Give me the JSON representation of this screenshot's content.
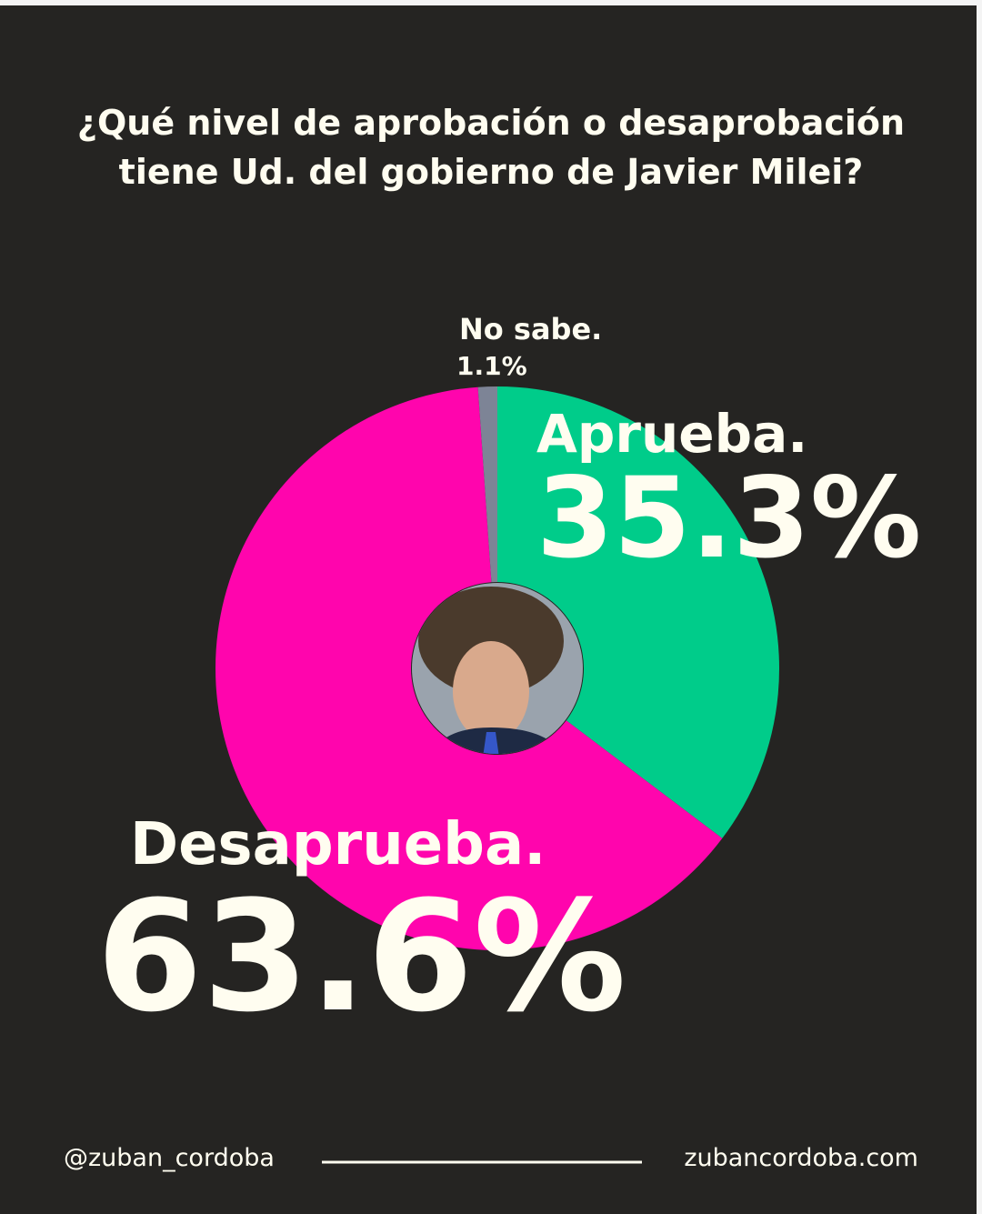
{
  "chart_data": {
    "type": "pie",
    "title": "¿Qué nivel de aprobación o desaprobación tiene Ud. del gobierno de Javier Milei?",
    "categories": [
      "Aprueba.",
      "Desaprueba.",
      "No sabe."
    ],
    "values": [
      35.3,
      63.6,
      1.1
    ],
    "value_labels": [
      "35.3%",
      "63.6%",
      "1.1%"
    ],
    "colors": [
      "#00cc8a",
      "#ff05ad",
      "#7d8496"
    ]
  },
  "footer": {
    "handle": "@zuban_cordoba",
    "website": "zubancordoba.com"
  }
}
